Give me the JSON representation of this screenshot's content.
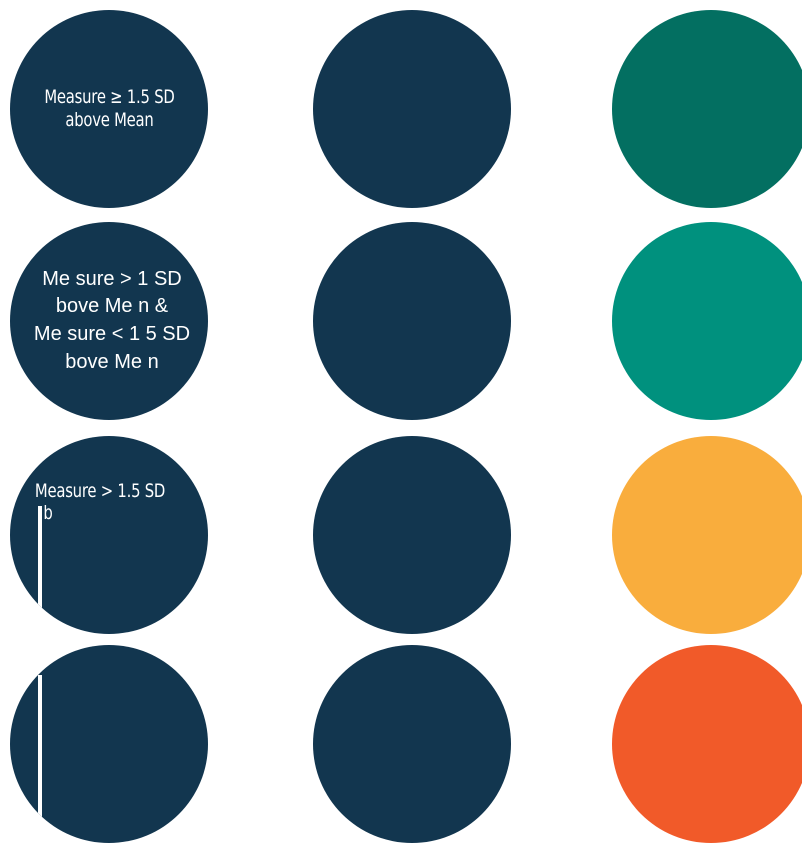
{
  "rows": [
    {
      "label": "Measure ≥ 1.5 SD\nabove Mean",
      "swatch": "#036f61"
    },
    {
      "label": "Me sure > 1 SD\nbove Me n &\nMe sure < 1 5 SD\nbove Me n",
      "swatch": "#00917e"
    },
    {
      "label": "Measure > 1.5 SD",
      "label_fragment": "b",
      "swatch": "#f9ad3d"
    },
    {
      "label": "",
      "swatch": "#f15a29"
    }
  ],
  "colors": {
    "navy": "#12364f",
    "background": "#ffffff"
  }
}
